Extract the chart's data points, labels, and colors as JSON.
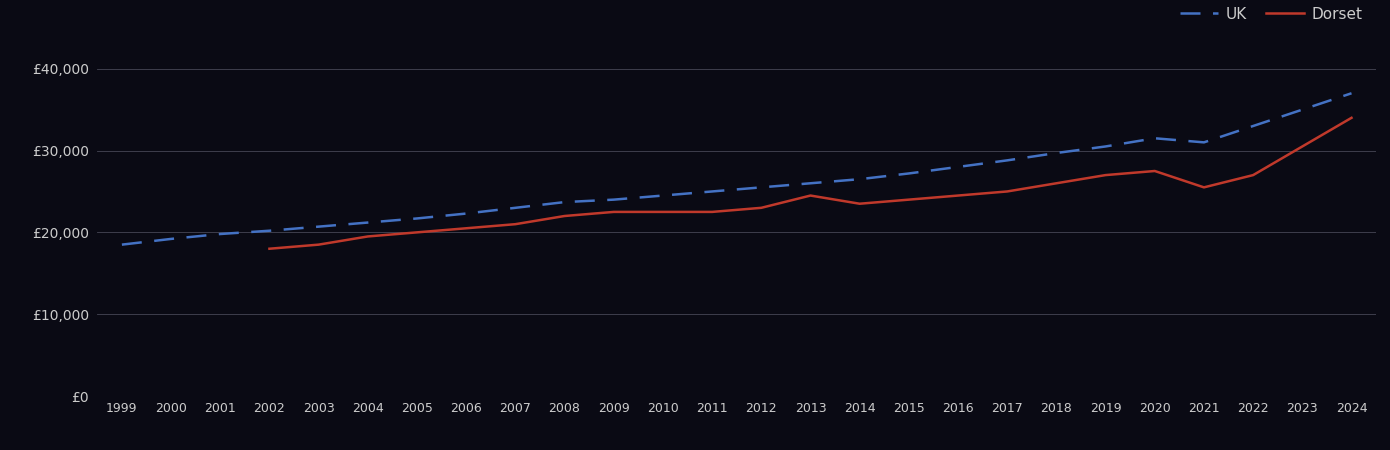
{
  "years": [
    1999,
    2000,
    2001,
    2002,
    2003,
    2004,
    2005,
    2006,
    2007,
    2008,
    2009,
    2010,
    2011,
    2012,
    2013,
    2014,
    2015,
    2016,
    2017,
    2018,
    2019,
    2020,
    2021,
    2022,
    2023,
    2024
  ],
  "uk": [
    18500,
    19200,
    19800,
    20200,
    20700,
    21200,
    21700,
    22300,
    23000,
    23700,
    24000,
    24500,
    25000,
    25500,
    26000,
    26500,
    27200,
    28000,
    28800,
    29700,
    30500,
    31500,
    31000,
    33000,
    35000,
    37000
  ],
  "dorset": [
    null,
    null,
    null,
    18000,
    18500,
    19500,
    20000,
    20500,
    21000,
    22000,
    22500,
    22500,
    22500,
    23000,
    24500,
    23500,
    24000,
    24500,
    25000,
    26000,
    27000,
    27500,
    25500,
    27000,
    30500,
    34000
  ],
  "uk_color": "#4472c4",
  "dorset_color": "#c0392b",
  "background_color": "#0a0a14",
  "grid_color": "#555566",
  "text_color": "#cccccc",
  "uk_label": "UK",
  "dorset_label": "Dorset",
  "ylim": [
    0,
    44000
  ],
  "yticks": [
    0,
    10000,
    20000,
    30000,
    40000
  ],
  "ytick_labels": [
    "£0",
    "£10,000",
    "£20,000",
    "£30,000",
    "£40,000"
  ]
}
